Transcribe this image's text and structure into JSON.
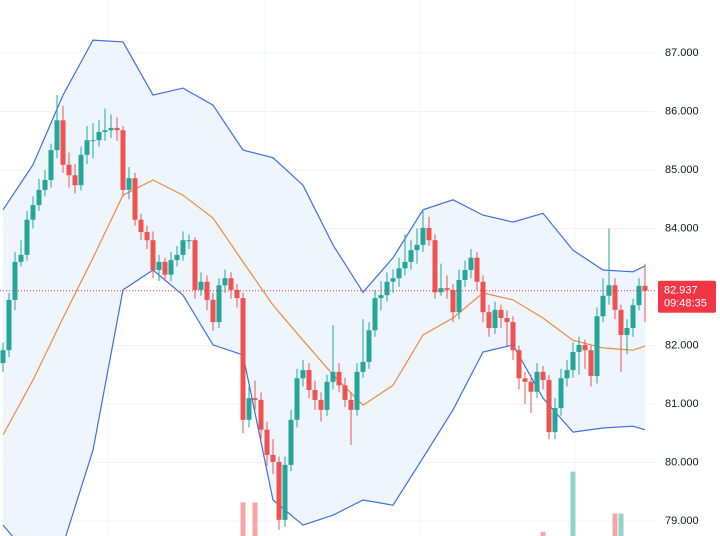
{
  "chart_data": {
    "type": "candlestick",
    "ylim": [
      78.744,
      87.906
    ],
    "yticks": [
      {
        "value": 79,
        "label": "79.000"
      },
      {
        "value": 80,
        "label": "80.000"
      },
      {
        "value": 81,
        "label": "81.000"
      },
      {
        "value": 82,
        "label": "82.000"
      },
      {
        "value": 83,
        "label": "83.000"
      },
      {
        "value": 84,
        "label": "84.000"
      },
      {
        "value": 85,
        "label": "85.000"
      },
      {
        "value": 86,
        "label": "86.000"
      },
      {
        "value": 87,
        "label": "87.000"
      }
    ],
    "grid": true,
    "xgrid": [
      17.5,
      43.7,
      69.5,
      95.3
    ],
    "up_color": "#26a69a",
    "down_color": "#ef5350",
    "candles": [
      [
        81.7,
        82.05,
        81.55,
        81.92
      ],
      [
        81.92,
        82.9,
        81.8,
        82.78
      ],
      [
        82.78,
        83.6,
        82.6,
        83.43
      ],
      [
        83.43,
        83.8,
        83.35,
        83.55
      ],
      [
        83.55,
        84.3,
        83.45,
        84.15
      ],
      [
        84.15,
        84.55,
        84.0,
        84.4
      ],
      [
        84.4,
        84.85,
        84.3,
        84.66
      ],
      [
        84.66,
        85.0,
        84.55,
        84.83
      ],
      [
        84.83,
        85.45,
        84.7,
        85.34
      ],
      [
        85.34,
        86.28,
        85.2,
        85.85
      ],
      [
        85.85,
        86.1,
        84.95,
        85.09
      ],
      [
        85.09,
        85.3,
        84.7,
        84.91
      ],
      [
        84.91,
        85.1,
        84.6,
        84.74
      ],
      [
        84.74,
        85.4,
        84.65,
        85.26
      ],
      [
        85.26,
        85.75,
        85.1,
        85.51
      ],
      [
        85.51,
        85.8,
        85.2,
        85.51
      ],
      [
        85.51,
        85.85,
        85.4,
        85.65
      ],
      [
        85.65,
        86.05,
        85.5,
        85.68
      ],
      [
        85.68,
        85.95,
        85.55,
        85.72
      ],
      [
        85.72,
        85.9,
        85.5,
        85.68
      ],
      [
        85.68,
        85.75,
        84.55,
        84.66
      ],
      [
        84.66,
        85.05,
        84.5,
        84.86
      ],
      [
        84.86,
        84.95,
        84.05,
        84.15
      ],
      [
        84.15,
        84.25,
        83.8,
        83.94
      ],
      [
        83.94,
        84.05,
        83.65,
        83.8
      ],
      [
        83.8,
        83.95,
        83.15,
        83.29
      ],
      [
        83.29,
        83.55,
        83.1,
        83.43
      ],
      [
        83.43,
        83.5,
        83.1,
        83.21
      ],
      [
        83.21,
        83.6,
        83.1,
        83.46
      ],
      [
        83.46,
        83.7,
        83.35,
        83.55
      ],
      [
        83.55,
        83.95,
        83.45,
        83.8
      ],
      [
        83.8,
        83.9,
        83.65,
        83.8
      ],
      [
        83.8,
        83.85,
        82.8,
        82.95
      ],
      [
        82.95,
        83.25,
        82.85,
        83.09
      ],
      [
        83.09,
        83.2,
        82.6,
        82.78
      ],
      [
        82.78,
        82.9,
        82.25,
        82.4
      ],
      [
        82.4,
        83.15,
        82.3,
        83.03
      ],
      [
        83.03,
        83.3,
        82.9,
        83.15
      ],
      [
        83.15,
        83.25,
        82.8,
        82.95
      ],
      [
        82.95,
        83.05,
        82.65,
        82.81
      ],
      [
        82.81,
        82.9,
        80.5,
        80.73
      ],
      [
        80.73,
        81.3,
        80.6,
        81.1
      ],
      [
        81.1,
        81.4,
        80.9,
        81.07
      ],
      [
        81.07,
        81.2,
        80.4,
        80.56
      ],
      [
        80.56,
        80.7,
        79.95,
        80.13
      ],
      [
        80.13,
        80.4,
        79.8,
        80.01
      ],
      [
        80.01,
        80.1,
        78.85,
        79.02
      ],
      [
        79.02,
        80.1,
        78.9,
        79.96
      ],
      [
        79.96,
        80.9,
        79.85,
        80.73
      ],
      [
        80.73,
        81.6,
        80.6,
        81.44
      ],
      [
        81.44,
        81.75,
        81.3,
        81.58
      ],
      [
        81.58,
        81.7,
        81.1,
        81.24
      ],
      [
        81.24,
        81.4,
        80.9,
        81.07
      ],
      [
        81.07,
        81.2,
        80.7,
        80.9
      ],
      [
        80.9,
        81.5,
        80.8,
        81.38
      ],
      [
        81.38,
        82.35,
        81.25,
        81.55
      ],
      [
        81.55,
        81.7,
        81.2,
        81.32
      ],
      [
        81.32,
        81.45,
        80.95,
        81.07
      ],
      [
        81.07,
        81.2,
        80.3,
        80.9
      ],
      [
        80.9,
        81.7,
        80.8,
        81.55
      ],
      [
        81.55,
        82.45,
        81.45,
        81.72
      ],
      [
        81.72,
        82.4,
        81.6,
        82.26
      ],
      [
        82.26,
        82.95,
        82.15,
        82.81
      ],
      [
        82.81,
        83.1,
        82.6,
        82.86
      ],
      [
        82.86,
        83.25,
        82.75,
        83.09
      ],
      [
        83.09,
        83.3,
        82.9,
        83.15
      ],
      [
        83.15,
        83.5,
        83.0,
        83.32
      ],
      [
        83.32,
        83.9,
        83.2,
        83.43
      ],
      [
        83.43,
        83.8,
        83.3,
        83.63
      ],
      [
        83.63,
        84.0,
        83.4,
        83.72
      ],
      [
        83.72,
        84.3,
        83.6,
        84.01
      ],
      [
        84.01,
        84.2,
        83.7,
        83.8
      ],
      [
        83.8,
        83.9,
        82.8,
        82.91
      ],
      [
        82.91,
        83.4,
        82.85,
        82.98
      ],
      [
        82.98,
        83.2,
        82.8,
        82.95
      ],
      [
        82.95,
        83.05,
        82.4,
        82.57
      ],
      [
        82.57,
        83.3,
        82.45,
        83.12
      ],
      [
        83.12,
        83.45,
        83.0,
        83.29
      ],
      [
        83.29,
        83.65,
        83.15,
        83.5
      ],
      [
        83.5,
        83.6,
        82.95,
        83.09
      ],
      [
        83.09,
        83.2,
        82.4,
        82.57
      ],
      [
        82.57,
        82.7,
        82.15,
        82.3
      ],
      [
        82.3,
        82.75,
        82.2,
        82.61
      ],
      [
        82.61,
        82.7,
        82.3,
        82.47
      ],
      [
        82.47,
        82.6,
        82.0,
        82.4
      ],
      [
        82.4,
        82.5,
        81.75,
        81.92
      ],
      [
        81.92,
        82.0,
        81.25,
        81.44
      ],
      [
        81.44,
        81.55,
        81.0,
        81.38
      ],
      [
        81.38,
        81.5,
        80.85,
        81.21
      ],
      [
        81.21,
        81.7,
        81.1,
        81.55
      ],
      [
        81.55,
        81.65,
        81.25,
        81.41
      ],
      [
        81.41,
        81.5,
        80.4,
        80.52
      ],
      [
        80.52,
        81.1,
        80.4,
        80.93
      ],
      [
        80.93,
        81.6,
        80.8,
        81.44
      ],
      [
        81.44,
        81.75,
        81.3,
        81.58
      ],
      [
        81.58,
        82.05,
        81.45,
        81.89
      ],
      [
        81.89,
        82.15,
        81.5,
        82.01
      ],
      [
        82.01,
        82.1,
        81.6,
        81.92
      ],
      [
        81.92,
        82.0,
        81.3,
        81.48
      ],
      [
        81.48,
        82.65,
        81.35,
        82.5
      ],
      [
        82.5,
        83.15,
        82.4,
        82.85
      ],
      [
        82.85,
        84.0,
        82.7,
        83.03
      ],
      [
        83.03,
        83.15,
        82.45,
        82.61
      ],
      [
        82.61,
        82.7,
        81.55,
        82.18
      ],
      [
        82.18,
        82.45,
        81.85,
        82.3
      ],
      [
        82.3,
        82.8,
        82.15,
        82.69
      ],
      [
        82.69,
        83.15,
        82.6,
        83.02
      ],
      [
        83.02,
        83.4,
        82.4,
        82.937
      ]
    ],
    "bands": {
      "x": [
        0,
        5,
        10,
        15,
        20,
        25,
        30,
        35,
        40,
        45,
        50,
        55,
        60,
        65,
        70,
        75,
        80,
        85,
        90,
        95,
        100,
        105,
        107
      ],
      "fill": "#eef5fc",
      "series": [
        {
          "color": "#3f6fe0",
          "values": [
            84.32,
            85.09,
            86.28,
            87.22,
            87.19,
            86.28,
            86.4,
            86.11,
            85.34,
            85.21,
            84.74,
            83.72,
            82.91,
            83.5,
            84.32,
            84.49,
            84.23,
            84.11,
            84.26,
            83.63,
            83.29,
            83.26,
            83.36
          ]
        },
        {
          "color": "#f08a3c",
          "values": [
            80.47,
            81.41,
            82.47,
            83.5,
            84.57,
            84.83,
            84.57,
            84.18,
            83.43,
            82.69,
            82.09,
            81.5,
            80.98,
            81.32,
            82.18,
            82.47,
            82.9,
            82.78,
            82.47,
            82.09,
            81.96,
            81.92,
            81.99
          ]
        },
        {
          "color": "#3f6fe0",
          "values": [
            78.93,
            78.33,
            78.59,
            80.21,
            82.95,
            83.29,
            82.86,
            82.01,
            81.84,
            79.36,
            78.93,
            79.1,
            79.36,
            79.27,
            80.08,
            80.9,
            81.89,
            82.01,
            81.1,
            80.52,
            80.59,
            80.62,
            80.56
          ]
        }
      ]
    },
    "volume": {
      "vlim": [
        0,
        100
      ],
      "x": [
        40,
        42,
        90,
        95,
        102,
        103
      ],
      "values": [
        24,
        24,
        3,
        46,
        16,
        16
      ],
      "colors": [
        "#f5a5a3",
        "#f5a5a3",
        "#f5a5a3",
        "#8fd3cc",
        "#f5a5a3",
        "#8fd3cc"
      ]
    },
    "last_price_label": "82.937",
    "time_label": "09:48:35",
    "last_price_color": "#f23645"
  }
}
